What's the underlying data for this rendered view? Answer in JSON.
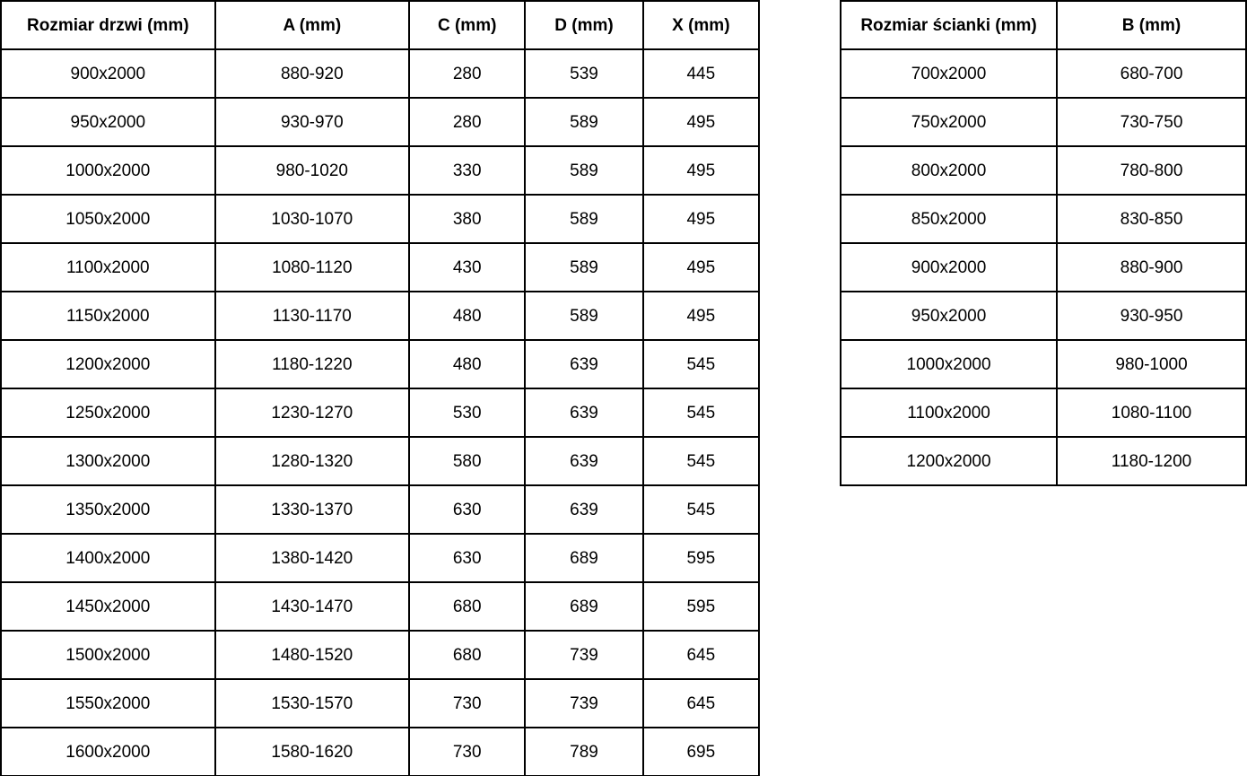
{
  "doors_table": {
    "headers": [
      "Rozmiar drzwi (mm)",
      "A (mm)",
      "C (mm)",
      "D (mm)",
      "X (mm)"
    ],
    "rows": [
      [
        "900x2000",
        "880-920",
        "280",
        "539",
        "445"
      ],
      [
        "950x2000",
        "930-970",
        "280",
        "589",
        "495"
      ],
      [
        "1000x2000",
        "980-1020",
        "330",
        "589",
        "495"
      ],
      [
        "1050x2000",
        "1030-1070",
        "380",
        "589",
        "495"
      ],
      [
        "1100x2000",
        "1080-1120",
        "430",
        "589",
        "495"
      ],
      [
        "1150x2000",
        "1130-1170",
        "480",
        "589",
        "495"
      ],
      [
        "1200x2000",
        "1180-1220",
        "480",
        "639",
        "545"
      ],
      [
        "1250x2000",
        "1230-1270",
        "530",
        "639",
        "545"
      ],
      [
        "1300x2000",
        "1280-1320",
        "580",
        "639",
        "545"
      ],
      [
        "1350x2000",
        "1330-1370",
        "630",
        "639",
        "545"
      ],
      [
        "1400x2000",
        "1380-1420",
        "630",
        "689",
        "595"
      ],
      [
        "1450x2000",
        "1430-1470",
        "680",
        "689",
        "595"
      ],
      [
        "1500x2000",
        "1480-1520",
        "680",
        "739",
        "645"
      ],
      [
        "1550x2000",
        "1530-1570",
        "730",
        "739",
        "645"
      ],
      [
        "1600x2000",
        "1580-1620",
        "730",
        "789",
        "695"
      ]
    ]
  },
  "wall_table": {
    "headers": [
      "Rozmiar ścianki (mm)",
      "B (mm)"
    ],
    "rows": [
      [
        "700x2000",
        "680-700"
      ],
      [
        "750x2000",
        "730-750"
      ],
      [
        "800x2000",
        "780-800"
      ],
      [
        "850x2000",
        "830-850"
      ],
      [
        "900x2000",
        "880-900"
      ],
      [
        "950x2000",
        "930-950"
      ],
      [
        "1000x2000",
        "980-1000"
      ],
      [
        "1100x2000",
        "1080-1100"
      ],
      [
        "1200x2000",
        "1180-1200"
      ]
    ]
  },
  "colors": {
    "border": "#000000",
    "background": "#ffffff",
    "text": "#000000"
  }
}
